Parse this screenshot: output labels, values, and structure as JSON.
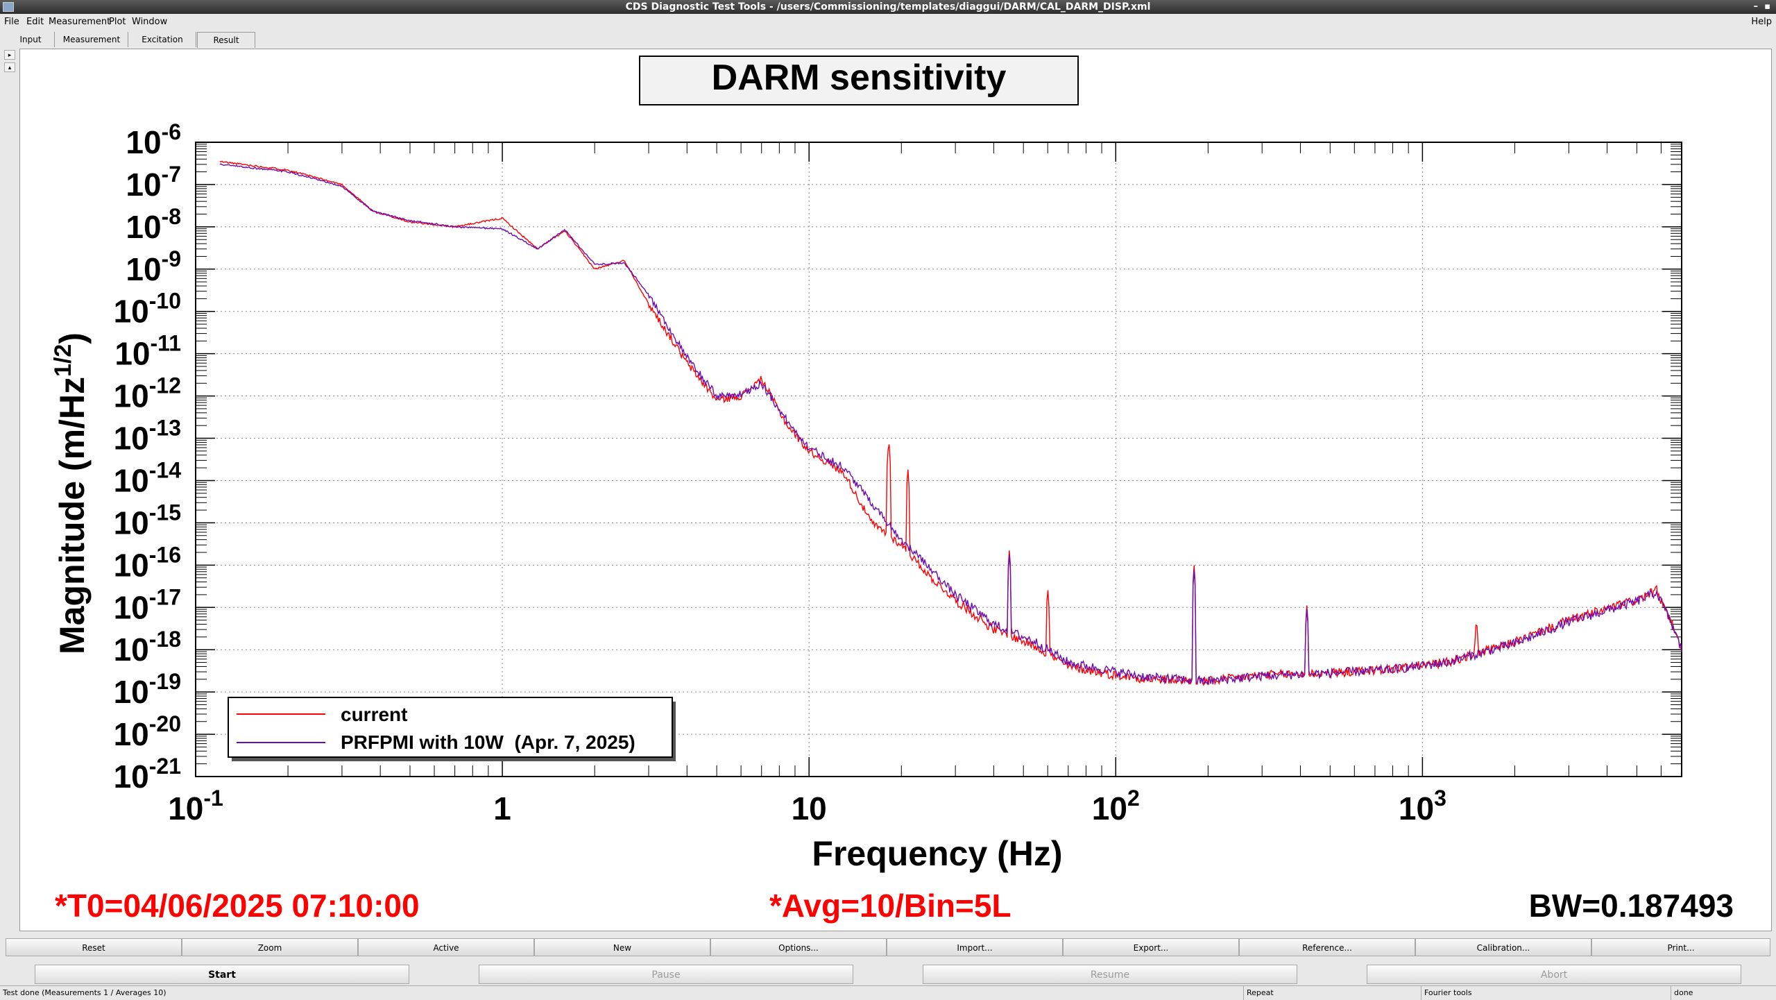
{
  "window": {
    "title": "CDS Diagnostic Test Tools - /users/Commissioning/templates/diaggui/DARM/CAL_DARM_DISP.xml"
  },
  "menu": [
    "File",
    "Edit",
    "Measurement",
    "Plot",
    "Window"
  ],
  "menu_help": "Help",
  "tabs": [
    "Input",
    "Measurement",
    "Excitation",
    "Result"
  ],
  "plot": {
    "title": "DARM sensitivity",
    "info_t0": "*T0=04/06/2025 07:10:00",
    "info_avg": "*Avg=10/Bin=5L",
    "info_bw": "BW=0.187493"
  },
  "chart_data": {
    "type": "line",
    "xlabel": "Frequency (Hz)",
    "ylabel": "Magnitude (m/Hz^1/2)",
    "xscale": "log",
    "yscale": "log",
    "xlim": [
      0.1,
      7000
    ],
    "ylim": [
      1e-21,
      1e-06
    ],
    "x_ticks": [
      "10^-1",
      "1",
      "10",
      "10^2",
      "10^3"
    ],
    "y_ticks": [
      "10^-6",
      "10^-7",
      "10^-8",
      "10^-9",
      "10^-10",
      "10^-11",
      "10^-12",
      "10^-13",
      "10^-14",
      "10^-15",
      "10^-16",
      "10^-17",
      "10^-18",
      "10^-19",
      "10^-20",
      "10^-21"
    ],
    "grid": true,
    "legend_position": "bottom-left",
    "series": [
      {
        "name": "current",
        "color": "#ff0000",
        "points": [
          [
            0.12,
            3.5e-07
          ],
          [
            0.2,
            2.2e-07
          ],
          [
            0.3,
            1e-07
          ],
          [
            0.38,
            2.3e-08
          ],
          [
            0.5,
            1.3e-08
          ],
          [
            0.7,
            1e-08
          ],
          [
            1.0,
            1.6e-08
          ],
          [
            1.3,
            3e-09
          ],
          [
            1.6,
            8e-09
          ],
          [
            2.0,
            1e-09
          ],
          [
            2.5,
            1.6e-09
          ],
          [
            3.0,
            1.5e-10
          ],
          [
            4.0,
            6e-12
          ],
          [
            5.0,
            8e-13
          ],
          [
            6.0,
            1e-12
          ],
          [
            7.0,
            2.5e-12
          ],
          [
            8.5,
            2e-13
          ],
          [
            10,
            5e-14
          ],
          [
            13,
            1.5e-14
          ],
          [
            16,
            1e-15
          ],
          [
            20,
            3e-16
          ],
          [
            25,
            5e-17
          ],
          [
            30,
            1.5e-17
          ],
          [
            40,
            3e-18
          ],
          [
            55,
            1.2e-18
          ],
          [
            70,
            4e-19
          ],
          [
            100,
            2.5e-19
          ],
          [
            130,
            2e-19
          ],
          [
            200,
            1.8e-19
          ],
          [
            300,
            2.5e-19
          ],
          [
            500,
            2.8e-19
          ],
          [
            800,
            3.5e-19
          ],
          [
            1200,
            5e-19
          ],
          [
            2000,
            1.5e-18
          ],
          [
            3000,
            5e-18
          ],
          [
            5000,
            1.5e-17
          ],
          [
            5800,
            2.5e-17
          ],
          [
            6500,
            4e-18
          ],
          [
            7000,
            1e-18
          ]
        ],
        "peaks": [
          [
            18.2,
            1e-13
          ],
          [
            21,
            2e-14
          ],
          [
            45,
            2.5e-16
          ],
          [
            60,
            3e-17
          ],
          [
            180,
            1e-16
          ],
          [
            420,
            1.2e-17
          ],
          [
            1500,
            6e-18
          ]
        ]
      },
      {
        "name": "PRFPMI with 10W  (Apr. 7, 2025)",
        "color": "#6a0dad",
        "points": [
          [
            0.12,
            3e-07
          ],
          [
            0.2,
            2e-07
          ],
          [
            0.3,
            9e-08
          ],
          [
            0.38,
            2.3e-08
          ],
          [
            0.5,
            1.4e-08
          ],
          [
            0.7,
            1e-08
          ],
          [
            1.0,
            9e-09
          ],
          [
            1.3,
            3e-09
          ],
          [
            1.6,
            8.5e-09
          ],
          [
            2.0,
            1.3e-09
          ],
          [
            2.5,
            1.4e-09
          ],
          [
            3.0,
            2.5e-10
          ],
          [
            4.0,
            8e-12
          ],
          [
            5.0,
            1e-12
          ],
          [
            6.0,
            1.1e-12
          ],
          [
            7.0,
            2e-12
          ],
          [
            8.5,
            2.5e-13
          ],
          [
            10,
            6e-14
          ],
          [
            13,
            2e-14
          ],
          [
            16,
            3e-15
          ],
          [
            20,
            4e-16
          ],
          [
            25,
            8e-17
          ],
          [
            30,
            2e-17
          ],
          [
            40,
            4e-18
          ],
          [
            55,
            1.5e-18
          ],
          [
            70,
            5e-19
          ],
          [
            100,
            3e-19
          ],
          [
            130,
            2.2e-19
          ],
          [
            200,
            1.8e-19
          ],
          [
            300,
            2.4e-19
          ],
          [
            500,
            2.8e-19
          ],
          [
            800,
            3.4e-19
          ],
          [
            1200,
            5e-19
          ],
          [
            2000,
            1.4e-18
          ],
          [
            3000,
            4.5e-18
          ],
          [
            5000,
            1.4e-17
          ],
          [
            5800,
            2.3e-17
          ],
          [
            6500,
            4e-18
          ],
          [
            7000,
            1e-18
          ]
        ],
        "peaks": [
          [
            45,
            2e-16
          ],
          [
            180,
            8e-17
          ],
          [
            420,
            1e-17
          ]
        ]
      }
    ]
  },
  "plot_buttons": [
    "Reset",
    "Zoom",
    "Active",
    "New",
    "Options...",
    "Import...",
    "Export...",
    "Reference...",
    "Calibration...",
    "Print..."
  ],
  "control_buttons": [
    "Start",
    "Pause",
    "Resume",
    "Abort"
  ],
  "status": {
    "left": "Test done (Measurements 1 / Averages 10)",
    "repeat": "Repeat",
    "fourier": "Fourier tools",
    "done": "done"
  }
}
